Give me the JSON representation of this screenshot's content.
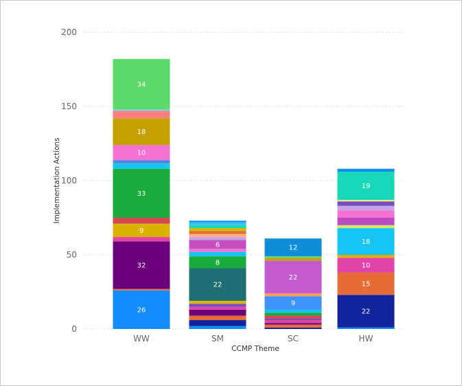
{
  "chart_data": {
    "type": "bar",
    "stacked": true,
    "title": "",
    "xlabel": "CCMP Theme",
    "ylabel": "Implementation Actions",
    "ylim": [
      0,
      200
    ],
    "yticks": [
      0,
      50,
      100,
      150,
      200
    ],
    "grid": true,
    "categories": [
      "WW",
      "SM",
      "SC",
      "HW"
    ],
    "stacks": [
      {
        "category": "WW",
        "segments": [
          {
            "value": 26,
            "color": "#118DFF",
            "label": "26"
          },
          {
            "value": 1,
            "color": "#E66C37"
          },
          {
            "value": 32,
            "color": "#6B007B",
            "label": "32"
          },
          {
            "value": 3,
            "color": "#E044A7"
          },
          {
            "value": 9,
            "color": "#D9B300",
            "label": "9"
          },
          {
            "value": 4,
            "color": "#D64550"
          },
          {
            "value": 33,
            "color": "#1AAB40",
            "label": "33"
          },
          {
            "value": 4,
            "color": "#15C6F4"
          },
          {
            "value": 1,
            "color": "#8764B8"
          },
          {
            "value": 1,
            "color": "#4092FF"
          },
          {
            "value": 10,
            "color": "#F472D0",
            "label": "10"
          },
          {
            "value": 18,
            "color": "#C5A100",
            "label": "18"
          },
          {
            "value": 5,
            "color": "#FF7F7F"
          },
          {
            "value": 1,
            "color": "#7FD0E6"
          },
          {
            "value": 34,
            "color": "#5EDA6B",
            "label": "34"
          }
        ]
      },
      {
        "category": "SM",
        "segments": [
          {
            "value": 2,
            "color": "#118DFF"
          },
          {
            "value": 4,
            "color": "#12239E"
          },
          {
            "value": 3,
            "color": "#E66C37"
          },
          {
            "value": 4,
            "color": "#6B007B"
          },
          {
            "value": 2,
            "color": "#E044A7"
          },
          {
            "value": 2,
            "color": "#744EC2"
          },
          {
            "value": 2,
            "color": "#D9B300"
          },
          {
            "value": 22,
            "color": "#1E6F73",
            "label": "22"
          },
          {
            "value": 8,
            "color": "#1AAB40",
            "label": "8"
          },
          {
            "value": 3,
            "color": "#15C6F4"
          },
          {
            "value": 2,
            "color": "#F472D0"
          },
          {
            "value": 6,
            "color": "#C34FC1",
            "label": "6"
          },
          {
            "value": 2,
            "color": "#C9A4E8"
          },
          {
            "value": 2,
            "color": "#FFB17A"
          },
          {
            "value": 2,
            "color": "#E66C37"
          },
          {
            "value": 2,
            "color": "#D9B300"
          },
          {
            "value": 2,
            "color": "#18D8B7"
          },
          {
            "value": 2,
            "color": "#38C0F0"
          },
          {
            "value": 1,
            "color": "#118DFF"
          }
        ]
      },
      {
        "category": "SC",
        "segments": [
          {
            "value": 1,
            "color": "#12239E"
          },
          {
            "value": 2,
            "color": "#E66C37"
          },
          {
            "value": 1,
            "color": "#6B007B"
          },
          {
            "value": 2,
            "color": "#E044A7"
          },
          {
            "value": 1,
            "color": "#744EC2"
          },
          {
            "value": 2,
            "color": "#D64550"
          },
          {
            "value": 2,
            "color": "#1AAB40"
          },
          {
            "value": 2,
            "color": "#15C6F4"
          },
          {
            "value": 9,
            "color": "#4092FF",
            "label": "9"
          },
          {
            "value": 2,
            "color": "#FFA058"
          },
          {
            "value": 22,
            "color": "#C35ACF",
            "label": "22"
          },
          {
            "value": 2,
            "color": "#C5A100"
          },
          {
            "value": 1,
            "color": "#5EDA6B"
          },
          {
            "value": 12,
            "color": "#0E8ED6",
            "label": "12"
          }
        ]
      },
      {
        "category": "HW",
        "segments": [
          {
            "value": 1,
            "color": "#118DFF"
          },
          {
            "value": 22,
            "color": "#12239E",
            "label": "22"
          },
          {
            "value": 15,
            "color": "#E66C37",
            "label": "15"
          },
          {
            "value": 10,
            "color": "#E044A7",
            "label": "10"
          },
          {
            "value": 2,
            "color": "#D9B300"
          },
          {
            "value": 18,
            "color": "#15C6F4",
            "label": "18"
          },
          {
            "value": 2,
            "color": "#D0E862"
          },
          {
            "value": 5,
            "color": "#BA4CC3"
          },
          {
            "value": 5,
            "color": "#F472D0"
          },
          {
            "value": 3,
            "color": "#C9A4E8"
          },
          {
            "value": 3,
            "color": "#744EC2"
          },
          {
            "value": 1,
            "color": "#FFE680"
          },
          {
            "value": 19,
            "color": "#18D8B7",
            "label": "19"
          },
          {
            "value": 2,
            "color": "#118DFF"
          }
        ]
      }
    ]
  }
}
